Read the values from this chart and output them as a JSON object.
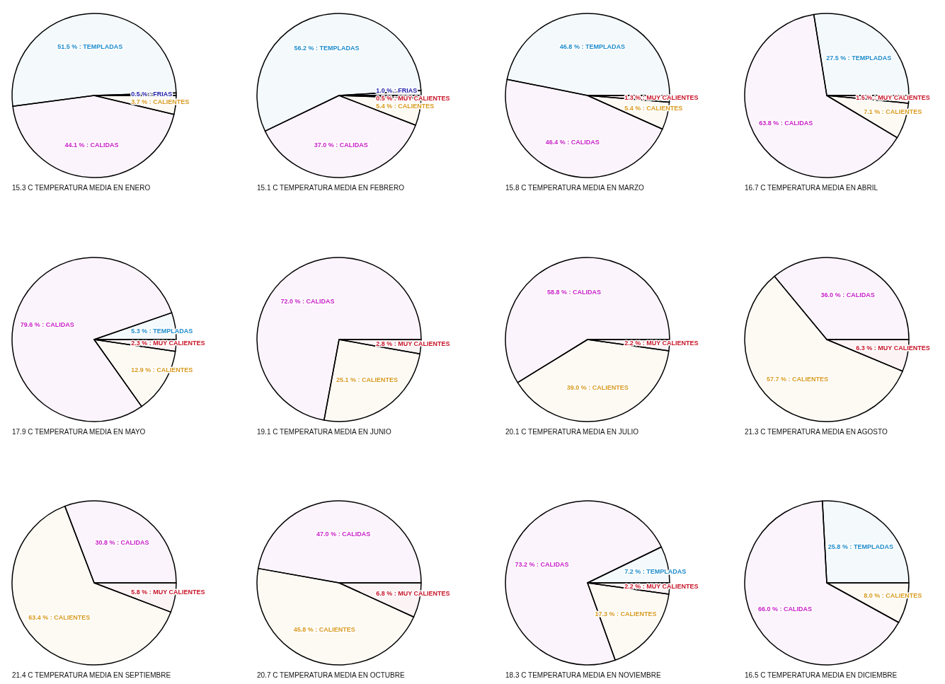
{
  "chart_data": [
    {
      "type": "pie",
      "title": "15.3 C   TEMPERATURA MEDIA EN ENERO",
      "categories": [
        "FRIAS",
        "TEMPLADAS",
        "CALIDAS",
        "CALIENTES"
      ],
      "values": [
        0.5,
        51.5,
        44.1,
        3.7
      ],
      "colors": [
        "#1c1ca8",
        "#1e8ccc",
        "#c81ec8",
        "#d89a1e"
      ],
      "value_labels": [
        "0.5 % :",
        "51.5 % :",
        "44.1 % :",
        "3.7 % :"
      ]
    },
    {
      "type": "pie",
      "title": "15.1 C   TEMPERATURA MEDIA EN FEBRERO",
      "categories": [
        "FRIAS",
        "TEMPLADAS",
        "CALIDAS",
        "CALIENTES",
        "MUY CALIENTES"
      ],
      "values": [
        1.0,
        56.2,
        37.0,
        5.4,
        0.5
      ],
      "colors": [
        "#1c1ca8",
        "#1e8ccc",
        "#c81ec8",
        "#d89a1e",
        "#c81428"
      ],
      "value_labels": [
        "1.0 % :",
        "56.2 % :",
        "37.0 % :",
        "5.4 % :",
        "0.5 % :"
      ]
    },
    {
      "type": "pie",
      "title": "15.8 C   TEMPERATURA MEDIA EN MARZO",
      "categories": [
        "TEMPLADAS",
        "CALIDAS",
        "CALIENTES",
        "MUY CALIENTES"
      ],
      "values": [
        46.8,
        46.4,
        5.4,
        1.3
      ],
      "colors": [
        "#1e8ccc",
        "#c81ec8",
        "#d89a1e",
        "#c81428"
      ],
      "value_labels": [
        "46.8 % :",
        "46.4 % :",
        "5.4 % :",
        "1.3 % :"
      ]
    },
    {
      "type": "pie",
      "title": "16.7 C   TEMPERATURA MEDIA EN ABRIL",
      "categories": [
        "TEMPLADAS",
        "CALIDAS",
        "CALIENTES",
        "MUY CALIENTES"
      ],
      "values": [
        27.5,
        63.8,
        7.1,
        1.5
      ],
      "colors": [
        "#1e8ccc",
        "#c81ec8",
        "#d89a1e",
        "#c81428"
      ],
      "value_labels": [
        "27.5 % :",
        "63.8 % :",
        "7.1 % :",
        "1.5 % :"
      ]
    },
    {
      "type": "pie",
      "title": "17.9 C   TEMPERATURA MEDIA EN MAYO",
      "categories": [
        "TEMPLADAS",
        "CALIDAS",
        "CALIENTES",
        "MUY CALIENTES"
      ],
      "values": [
        5.3,
        79.6,
        12.9,
        2.3
      ],
      "colors": [
        "#1e8ccc",
        "#c81ec8",
        "#d89a1e",
        "#c81428"
      ],
      "value_labels": [
        "5.3 % :",
        "79.6 % :",
        "12.9 % :",
        "2.3 % :"
      ]
    },
    {
      "type": "pie",
      "title": "19.1 C   TEMPERATURA MEDIA EN JUNIO",
      "categories": [
        "CALIDAS",
        "CALIENTES",
        "MUY CALIENTES"
      ],
      "values": [
        72.0,
        25.1,
        2.8
      ],
      "colors": [
        "#c81ec8",
        "#d89a1e",
        "#c81428"
      ],
      "value_labels": [
        "72.0 % :",
        "25.1 % :",
        "2.8 % :"
      ]
    },
    {
      "type": "pie",
      "title": "20.1 C   TEMPERATURA MEDIA EN JULIO",
      "categories": [
        "CALIDAS",
        "CALIENTES",
        "MUY CALIENTES"
      ],
      "values": [
        58.8,
        39.0,
        2.2
      ],
      "colors": [
        "#c81ec8",
        "#d89a1e",
        "#c81428"
      ],
      "value_labels": [
        "58.8 % :",
        "39.0 % :",
        "2.2 % :"
      ]
    },
    {
      "type": "pie",
      "title": "21.3 C   TEMPERATURA MEDIA EN AGOSTO",
      "categories": [
        "CALIDAS",
        "CALIENTES",
        "MUY CALIENTES"
      ],
      "values": [
        36.0,
        57.7,
        6.3
      ],
      "colors": [
        "#c81ec8",
        "#d89a1e",
        "#c81428"
      ],
      "value_labels": [
        "36.0 % :",
        "57.7 % :",
        "6.3 % :"
      ]
    },
    {
      "type": "pie",
      "title": "21.4 C   TEMPERATURA MEDIA EN SEPTIEMBRE",
      "categories": [
        "CALIDAS",
        "CALIENTES",
        "MUY CALIENTES"
      ],
      "values": [
        30.8,
        63.4,
        5.8
      ],
      "colors": [
        "#c81ec8",
        "#d89a1e",
        "#c81428"
      ],
      "value_labels": [
        "30.8 % :",
        "63.4 % :",
        "5.8 % :"
      ]
    },
    {
      "type": "pie",
      "title": "20.7 C   TEMPERATURA MEDIA EN OCTUBRE",
      "categories": [
        "CALIDAS",
        "CALIENTES",
        "MUY CALIENTES"
      ],
      "values": [
        47.0,
        45.8,
        6.8
      ],
      "colors": [
        "#c81ec8",
        "#d89a1e",
        "#c81428"
      ],
      "value_labels": [
        "47.0 % :",
        "45.8 % :",
        "6.8 % :"
      ]
    },
    {
      "type": "pie",
      "title": "18.3 C   TEMPERATURA MEDIA EN NOVIEMBRE",
      "categories": [
        "TEMPLADAS",
        "CALIDAS",
        "CALIENTES",
        "MUY CALIENTES"
      ],
      "values": [
        7.2,
        73.2,
        17.3,
        2.2
      ],
      "colors": [
        "#1e8ccc",
        "#c81ec8",
        "#d89a1e",
        "#c81428"
      ],
      "value_labels": [
        "7.2 % :",
        "73.2 % :",
        "17.3 % :",
        "2.2 % :"
      ]
    },
    {
      "type": "pie",
      "title": "16.5 C   TEMPERATURA MEDIA EN DICIEMBRE",
      "categories": [
        "TEMPLADAS",
        "CALIDAS",
        "CALIENTES"
      ],
      "values": [
        25.8,
        66.0,
        8.0
      ],
      "colors": [
        "#1e8ccc",
        "#c81ec8",
        "#d89a1e"
      ],
      "value_labels": [
        "25.8 % :",
        "66.0 % :",
        "8.0 % :"
      ]
    }
  ]
}
